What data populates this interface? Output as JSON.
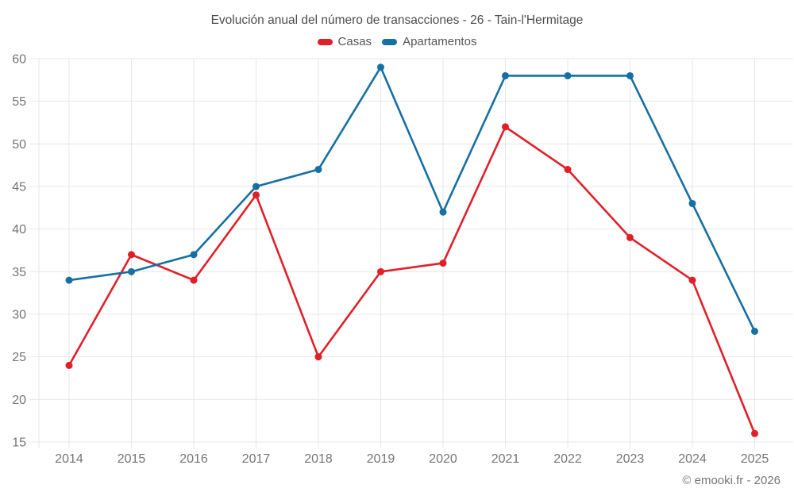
{
  "title": "Evolución anual del número de transacciones - 26 - Tain-l'Hermitage",
  "footer": "© emooki.fr - 2026",
  "colors": {
    "casas": "#e02029",
    "apartamentos": "#1670a2",
    "grid": "#e7e7e7",
    "tick_text": "#757575",
    "title_text": "#4d4d4d"
  },
  "chart_data": {
    "type": "line",
    "title": "Evolución anual del número de transacciones - 26 - Tain-l'Hermitage",
    "categories": [
      "2014",
      "2015",
      "2016",
      "2017",
      "2018",
      "2019",
      "2020",
      "2021",
      "2022",
      "2023",
      "2024",
      "2025"
    ],
    "series": [
      {
        "name": "Casas",
        "color": "#e02029",
        "values": [
          24,
          37,
          34,
          44,
          25,
          35,
          36,
          52,
          47,
          39,
          34,
          16
        ]
      },
      {
        "name": "Apartamentos",
        "color": "#1670a2",
        "values": [
          34,
          35,
          37,
          45,
          47,
          59,
          42,
          58,
          58,
          58,
          43,
          28
        ]
      }
    ],
    "xlabel": "",
    "ylabel": "",
    "ylim": [
      15,
      60
    ],
    "yticks": [
      15,
      20,
      25,
      30,
      35,
      40,
      45,
      50,
      55,
      60
    ],
    "grid": true,
    "legend_position": "top"
  }
}
